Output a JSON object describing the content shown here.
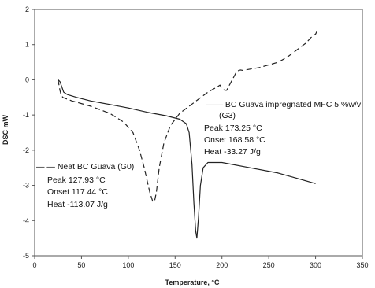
{
  "chart_data": {
    "type": "line",
    "xlabel": "Temperature, °C",
    "ylabel": "DSC mW",
    "xlim": [
      0,
      350
    ],
    "ylim": [
      -5,
      2
    ],
    "xticks": [
      "0",
      "50",
      "100",
      "150",
      "200",
      "250",
      "300",
      "350"
    ],
    "yticks": [
      "2",
      "1",
      "0",
      "-1",
      "-2",
      "-3",
      "-4",
      "-5"
    ],
    "grid": false,
    "series": [
      {
        "name": "Neat BC Guava (G0)",
        "style": "dashed",
        "color": "#222222",
        "x": [
          25,
          27,
          28,
          30,
          40,
          60,
          80,
          95,
          105,
          112,
          117,
          120,
          123,
          126,
          128,
          130,
          133,
          138,
          145,
          155,
          165,
          175,
          185,
          195,
          198,
          200,
          203,
          205,
          207,
          210,
          213,
          215,
          218,
          220,
          222,
          225,
          240,
          260,
          270,
          280,
          290,
          295,
          300,
          302
        ],
        "y": [
          0.0,
          -0.3,
          -0.4,
          -0.5,
          -0.6,
          -0.75,
          -0.95,
          -1.2,
          -1.5,
          -2.0,
          -2.5,
          -2.85,
          -3.2,
          -3.45,
          -3.46,
          -3.2,
          -2.5,
          -1.8,
          -1.3,
          -0.95,
          -0.75,
          -0.55,
          -0.35,
          -0.2,
          -0.15,
          -0.25,
          -0.3,
          -0.3,
          -0.2,
          -0.05,
          0.1,
          0.2,
          0.27,
          0.28,
          0.27,
          0.28,
          0.35,
          0.5,
          0.65,
          0.85,
          1.05,
          1.2,
          1.3,
          1.4
        ]
      },
      {
        "name": "BC Guava impregnated MFC 5 %w/v (G3)",
        "style": "solid",
        "color": "#222222",
        "x": [
          25,
          27,
          29,
          31,
          35,
          45,
          60,
          80,
          100,
          120,
          140,
          155,
          162,
          165,
          168,
          170,
          172,
          173.25,
          175,
          177,
          180,
          185,
          200,
          230,
          260,
          280,
          300
        ],
        "y": [
          0.0,
          -0.05,
          -0.2,
          -0.35,
          -0.42,
          -0.5,
          -0.6,
          -0.7,
          -0.8,
          -0.92,
          -1.02,
          -1.12,
          -1.25,
          -1.5,
          -2.4,
          -3.5,
          -4.3,
          -4.5,
          -3.9,
          -3.0,
          -2.5,
          -2.35,
          -2.35,
          -2.5,
          -2.65,
          -2.8,
          -2.95
        ]
      }
    ],
    "annotations": {
      "g0": {
        "legend": "— — Neat BC Guava (G0)",
        "peak": "Peak   127.93 °C",
        "onset": "Onset  117.44 °C",
        "heat": "Heat   -113.07 J/g"
      },
      "g3": {
        "legend_line1": "—— BC Guava impregnated MFC 5 %w/v",
        "legend_line2": "(G3)",
        "peak": "Peak   173.25 °C",
        "onset": "Onset  168.58 °C",
        "heat": "Heat   -33.27 J/g"
      }
    }
  }
}
